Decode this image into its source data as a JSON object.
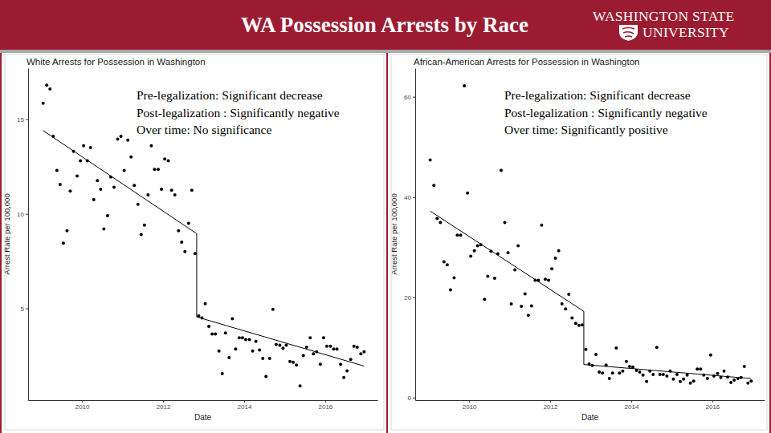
{
  "header": {
    "title": "WA Possession Arrests by Race",
    "logo": [
      "WASHINGTON STATE",
      "UNIVERSITY"
    ]
  },
  "chart_data": [
    {
      "type": "scatter",
      "title": "White Arrests for Possession in Washington",
      "xlabel": "Date",
      "ylabel": "Arrest Rate per 100,000",
      "annotations": [
        "Pre-legalization: Significant decrease",
        "Post-legalization : Significantly negative",
        "Over time: No significance"
      ],
      "xlim": [
        2008.67,
        2017.29
      ],
      "xticks": [
        2010,
        2012,
        2014,
        2016
      ],
      "ylim": [
        0.15,
        17.7
      ],
      "yticks": [
        5,
        10,
        15
      ],
      "grid": false,
      "series": [
        {
          "type": "scatter",
          "color": "#000000",
          "marker": "circle",
          "x": [
            2009.04,
            2009.13,
            2009.21,
            2009.29,
            2009.38,
            2009.46,
            2009.54,
            2009.63,
            2009.71,
            2009.79,
            2009.88,
            2009.96,
            2010.04,
            2010.13,
            2010.21,
            2010.29,
            2010.38,
            2010.46,
            2010.54,
            2010.63,
            2010.71,
            2010.79,
            2010.88,
            2010.96,
            2011.04,
            2011.13,
            2011.21,
            2011.29,
            2011.38,
            2011.46,
            2011.54,
            2011.63,
            2011.71,
            2011.79,
            2011.88,
            2011.96,
            2012.04,
            2012.13,
            2012.21,
            2012.29,
            2012.38,
            2012.46,
            2012.54,
            2012.63,
            2012.71,
            2012.79,
            2012.88,
            2012.96,
            2013.04,
            2013.13,
            2013.21,
            2013.29,
            2013.38,
            2013.46,
            2013.54,
            2013.63,
            2013.71,
            2013.79,
            2013.88,
            2013.96,
            2014.04,
            2014.13,
            2014.21,
            2014.29,
            2014.38,
            2014.46,
            2014.54,
            2014.63,
            2014.71,
            2014.79,
            2014.88,
            2014.96,
            2015.04,
            2015.13,
            2015.21,
            2015.29,
            2015.38,
            2015.46,
            2015.54,
            2015.63,
            2015.71,
            2015.79,
            2015.88,
            2015.96,
            2016.04,
            2016.13,
            2016.21,
            2016.29,
            2016.38,
            2016.46,
            2016.54,
            2016.63,
            2016.71,
            2016.79,
            2016.88,
            2016.96
          ],
          "values": [
            15.85,
            16.8,
            16.6,
            14.1,
            12.3,
            11.55,
            8.45,
            9.1,
            11.2,
            13.3,
            12,
            12.8,
            13.6,
            12.8,
            13.5,
            10.75,
            11.75,
            11.3,
            9.2,
            9.9,
            11.95,
            11.4,
            13.95,
            14.1,
            12.3,
            13.9,
            13,
            11.5,
            10.5,
            8.9,
            9.4,
            11,
            13.6,
            12.35,
            12.35,
            11.3,
            12.9,
            12.8,
            11.25,
            11,
            9.1,
            8.5,
            8,
            9.5,
            11.25,
            7.9,
            4.6,
            4.5,
            5.25,
            4.05,
            3.65,
            3.65,
            2.75,
            1.55,
            3.7,
            2.4,
            4.45,
            2.85,
            3.45,
            3.45,
            3.35,
            3.35,
            2.75,
            3.25,
            2.8,
            2.35,
            1.4,
            2.35,
            4.95,
            3.1,
            3.05,
            2.9,
            3.05,
            2.2,
            2.15,
            2,
            0.9,
            2.5,
            2.95,
            3.45,
            2.6,
            2.7,
            2.05,
            3.45,
            3,
            3,
            2.85,
            2.85,
            2.05,
            1.35,
            1.7,
            2.3,
            3,
            2.95,
            2.6,
            2.7
          ]
        },
        {
          "type": "line",
          "color": "#000000",
          "line_style": "solid",
          "x": [
            2009.04,
            2012.83,
            2012.83,
            2016.96
          ],
          "values": [
            14.4,
            8.95,
            4.55,
            1.95
          ]
        }
      ]
    },
    {
      "type": "scatter",
      "title": "African-American Arrests for Possession in Washington",
      "xlabel": "Date",
      "ylabel": "Arrest Rate per 100,000",
      "annotations": [
        "Pre-legalization: Significant decrease",
        "Post-legalization : Significantly negative",
        "Over time: Significantly positive"
      ],
      "xlim": [
        2008.67,
        2017.29
      ],
      "xticks": [
        2010,
        2012,
        2014,
        2016
      ],
      "ylim": [
        -0.5,
        65.7
      ],
      "yticks": [
        0,
        20,
        40,
        60
      ],
      "grid": false,
      "series": [
        {
          "type": "scatter",
          "color": "#000000",
          "marker": "circle",
          "x": [
            2009.04,
            2009.13,
            2009.21,
            2009.29,
            2009.38,
            2009.46,
            2009.54,
            2009.63,
            2009.71,
            2009.79,
            2009.88,
            2009.96,
            2010.04,
            2010.13,
            2010.21,
            2010.29,
            2010.38,
            2010.46,
            2010.54,
            2010.63,
            2010.71,
            2010.79,
            2010.88,
            2010.96,
            2011.04,
            2011.13,
            2011.21,
            2011.29,
            2011.38,
            2011.46,
            2011.54,
            2011.63,
            2011.71,
            2011.79,
            2011.88,
            2011.96,
            2012.04,
            2012.13,
            2012.21,
            2012.29,
            2012.38,
            2012.46,
            2012.54,
            2012.63,
            2012.71,
            2012.79,
            2012.88,
            2012.96,
            2013.04,
            2013.13,
            2013.21,
            2013.29,
            2013.38,
            2013.46,
            2013.54,
            2013.63,
            2013.71,
            2013.79,
            2013.88,
            2013.96,
            2014.04,
            2014.13,
            2014.21,
            2014.29,
            2014.38,
            2014.46,
            2014.54,
            2014.63,
            2014.71,
            2014.79,
            2014.88,
            2014.96,
            2015.04,
            2015.13,
            2015.21,
            2015.29,
            2015.38,
            2015.46,
            2015.54,
            2015.63,
            2015.71,
            2015.79,
            2015.88,
            2015.96,
            2016.04,
            2016.13,
            2016.21,
            2016.29,
            2016.38,
            2016.46,
            2016.54,
            2016.63,
            2016.71,
            2016.79,
            2016.88,
            2016.96
          ],
          "values": [
            47.4,
            42.3,
            35.7,
            34.9,
            27.1,
            26.5,
            21.5,
            23.9,
            32.4,
            32.4,
            62.2,
            40.8,
            28.2,
            29.3,
            30.3,
            30.5,
            19.6,
            24.2,
            29.2,
            23.8,
            28.7,
            45.3,
            34.9,
            28.9,
            18.7,
            25.5,
            30.3,
            18.2,
            20.7,
            16.4,
            18.3,
            23.4,
            23.4,
            34.4,
            23.6,
            23.4,
            25.7,
            27.8,
            29.3,
            18.7,
            17.7,
            20.6,
            15.9,
            14.8,
            14.4,
            14.5,
            9.6,
            6.7,
            6.4,
            8.6,
            5.1,
            4.9,
            6.5,
            3.8,
            4.9,
            9.9,
            4.9,
            5.3,
            7.2,
            6.2,
            6.1,
            5.4,
            5.1,
            4.5,
            3.2,
            5.3,
            4.6,
            10,
            4.6,
            4.6,
            4.3,
            5.3,
            3.7,
            4.6,
            3.2,
            3.7,
            4.5,
            2.9,
            3.3,
            5.7,
            5.7,
            4.5,
            3.8,
            8.5,
            4.3,
            4.8,
            4,
            5.3,
            4.1,
            3,
            3.5,
            3.8,
            4,
            6.2,
            2.9,
            3.3
          ]
        },
        {
          "type": "line",
          "color": "#000000",
          "line_style": "solid",
          "x": [
            2009.04,
            2012.83,
            2012.83,
            2016.96
          ],
          "values": [
            37.2,
            17.2,
            6.6,
            3.8
          ]
        }
      ]
    }
  ]
}
